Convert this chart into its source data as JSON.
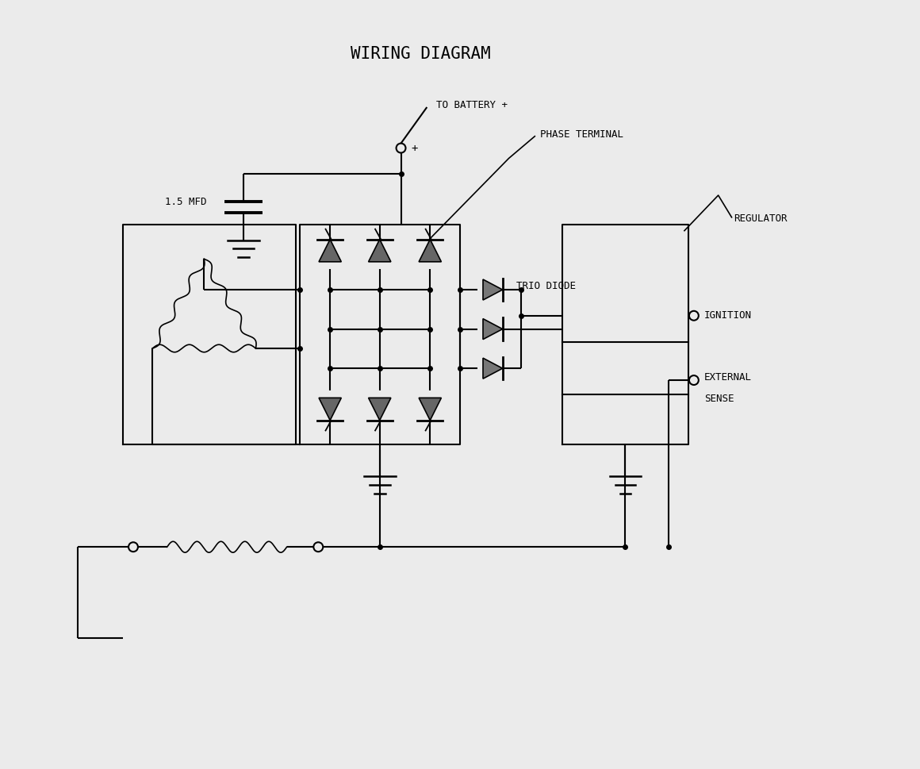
{
  "title": "WIRING DIAGRAM",
  "title_fontsize": 15,
  "bg_color": "#ebebeb",
  "label_battery": "TO BATTERY +",
  "label_phase": "PHASE TERMINAL",
  "label_trio": "TRIO DIODE",
  "label_regulator": "REGULATOR",
  "label_ignition": "IGNITION",
  "label_external_1": "EXTERNAL",
  "label_external_2": "SENSE",
  "label_mfd": "1.5 MFD",
  "font_family": "monospace"
}
